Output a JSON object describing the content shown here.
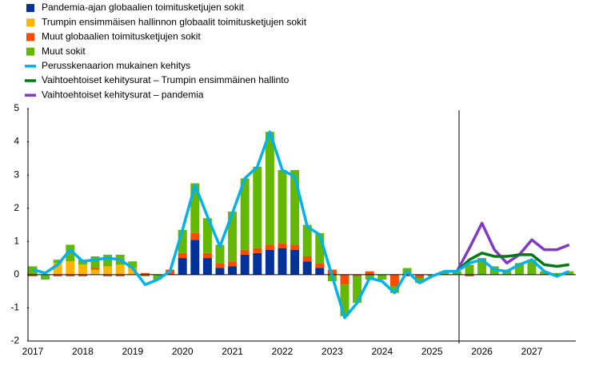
{
  "chart_data": {
    "type": "bar",
    "stacked": true,
    "categories": [
      "2017",
      null,
      null,
      null,
      "2018",
      null,
      null,
      null,
      "2019",
      null,
      null,
      null,
      "2020",
      null,
      null,
      null,
      "2021",
      null,
      null,
      null,
      "2022",
      null,
      null,
      null,
      "2023",
      null,
      null,
      null,
      "2024",
      null,
      null,
      null,
      "2025",
      null,
      null,
      null,
      "2026",
      null,
      null,
      null,
      "2027",
      null,
      null,
      null
    ],
    "ylim": [
      -2,
      5
    ],
    "yticks": [
      -2,
      -1,
      0,
      1,
      2,
      3,
      4,
      5
    ],
    "series": [
      {
        "name": "Pandemia-ajan globaalien toimitusketjujen sokit",
        "type": "bar",
        "color": "#003299",
        "values": [
          0,
          0,
          0,
          0,
          0,
          0,
          0,
          0,
          0,
          0,
          0,
          0,
          0.5,
          1.05,
          0.5,
          0.2,
          0.25,
          0.6,
          0.65,
          0.75,
          0.8,
          0.75,
          0.4,
          0.2,
          0,
          0,
          0,
          0,
          0,
          0,
          0,
          0,
          0,
          0,
          0,
          0,
          0,
          0,
          0,
          0,
          0,
          0,
          0,
          0
        ]
      },
      {
        "name": "Trumpin ensimmäisen hallinnon globaalit toimitusketjujen sokit",
        "type": "bar",
        "color": "#ffb400",
        "values": [
          0,
          0,
          0.35,
          0.4,
          0.3,
          0.15,
          0.25,
          0.3,
          0.2,
          0,
          0,
          0,
          0,
          0,
          0,
          0,
          0,
          0,
          0,
          0,
          0,
          0,
          0,
          0,
          0,
          0,
          0,
          0,
          0,
          0,
          0,
          0,
          0,
          0,
          0,
          0,
          0,
          0,
          0,
          0,
          0,
          0,
          0,
          0
        ]
      },
      {
        "name": "Muut globaalien toimitusketjujen sokit",
        "type": "bar",
        "color": "#ff4b00",
        "values": [
          -0.05,
          0,
          -0.05,
          -0.05,
          -0.05,
          0.05,
          -0.05,
          -0.05,
          0,
          0.05,
          0,
          0.15,
          0.15,
          0.2,
          0.15,
          0.15,
          0.15,
          0.15,
          0.15,
          0.15,
          0.15,
          0.15,
          0.15,
          0.15,
          0.15,
          -0.3,
          -0.05,
          0.1,
          0,
          -0.35,
          -0.05,
          -0.1,
          0,
          0,
          0,
          -0.05,
          0,
          0,
          0,
          0,
          0,
          0,
          0,
          0
        ]
      },
      {
        "name": "Muut sokit",
        "type": "bar",
        "color": "#65b800",
        "values": [
          0.25,
          -0.15,
          0.1,
          0.5,
          0.15,
          0.35,
          0.35,
          0.3,
          0.2,
          -0.05,
          -0.15,
          0,
          0.7,
          1.5,
          1.05,
          0.55,
          1.5,
          2.15,
          2.45,
          3.4,
          2.2,
          2.25,
          0.95,
          0.9,
          -0.2,
          -0.95,
          -0.8,
          -0.15,
          -0.15,
          -0.2,
          0.2,
          -0.15,
          -0.05,
          0.1,
          0.1,
          0.3,
          0.5,
          0.25,
          0.15,
          0.35,
          0.45,
          0.1,
          0.05,
          0.1
        ]
      },
      {
        "name": "Perusskenaarion mukainen kehitys",
        "type": "line",
        "color": "#00b1ea",
        "values": [
          0.15,
          0.05,
          0.3,
          0.75,
          0.4,
          0.45,
          0.5,
          0.45,
          0.2,
          -0.3,
          -0.15,
          0.1,
          1.35,
          2.7,
          1.75,
          0.85,
          1.85,
          2.9,
          3.25,
          4.3,
          3.15,
          2.95,
          1.45,
          1.2,
          -0.05,
          -1.3,
          -0.85,
          -0.1,
          -0.2,
          -0.55,
          0.1,
          -0.25,
          -0.05,
          0.1,
          0.1,
          0.35,
          0.45,
          0.15,
          0.1,
          0.3,
          0.45,
          0.1,
          -0.05,
          0.1
        ]
      },
      {
        "name": "Vaihtoehtoiset kehitysurat – Trumpin ensimmäinen hallinto",
        "type": "line",
        "color": "#007816",
        "values": [
          null,
          null,
          null,
          null,
          null,
          null,
          null,
          null,
          null,
          null,
          null,
          null,
          null,
          null,
          null,
          null,
          null,
          null,
          null,
          null,
          null,
          null,
          null,
          null,
          null,
          null,
          null,
          null,
          null,
          null,
          null,
          null,
          null,
          null,
          0.1,
          0.45,
          0.65,
          0.55,
          0.55,
          0.6,
          0.6,
          0.3,
          0.25,
          0.3
        ]
      },
      {
        "name": "Vaihtoehtoiset kehitysurat – pandemia",
        "type": "line",
        "color": "#8139c6",
        "values": [
          null,
          null,
          null,
          null,
          null,
          null,
          null,
          null,
          null,
          null,
          null,
          null,
          null,
          null,
          null,
          null,
          null,
          null,
          null,
          null,
          null,
          null,
          null,
          null,
          null,
          null,
          null,
          null,
          null,
          null,
          null,
          null,
          null,
          null,
          0.1,
          0.8,
          1.55,
          0.75,
          0.35,
          0.6,
          1.05,
          0.75,
          0.75,
          0.9
        ]
      }
    ]
  }
}
